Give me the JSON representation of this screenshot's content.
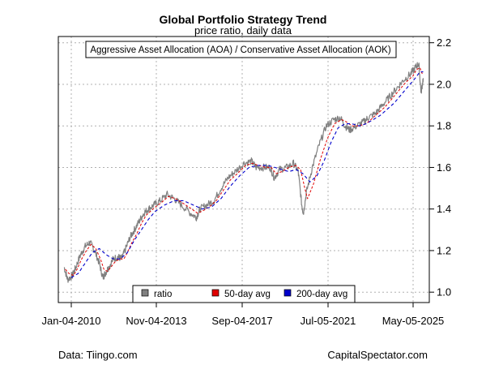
{
  "chart_data": {
    "type": "line",
    "title": "Global Portfolio Strategy Trend",
    "subtitle": "price ratio, daily data",
    "annotation": "Aggressive Asset Allocation (AOA) / Conservative Asset Allocation (AOK)",
    "x_ticks": [
      "Jan-04-2010",
      "Nov-04-2013",
      "Sep-04-2017",
      "Jul-05-2021",
      "May-05-2025"
    ],
    "y_ticks": [
      "1.0",
      "1.2",
      "1.4",
      "1.6",
      "1.8",
      "2.0",
      "2.2"
    ],
    "ylim": [
      0.95,
      2.23
    ],
    "xlim": [
      2009.75,
      2025.6
    ],
    "y_axis_position": "right",
    "grid": true,
    "legend_position": "bottom-center",
    "series": [
      {
        "name": "ratio",
        "color": "#808080",
        "x": [
          2010.0,
          2010.15,
          2010.35,
          2010.5,
          2010.7,
          2010.9,
          2011.1,
          2011.3,
          2011.5,
          2011.65,
          2011.75,
          2011.9,
          2012.1,
          2012.3,
          2012.45,
          2012.6,
          2012.8,
          2013.0,
          2013.2,
          2013.4,
          2013.6,
          2013.84,
          2014.1,
          2014.4,
          2014.7,
          2015.0,
          2015.4,
          2015.65,
          2015.8,
          2016.1,
          2016.4,
          2016.7,
          2017.0,
          2017.3,
          2017.68,
          2018.0,
          2018.2,
          2018.5,
          2018.8,
          2018.98,
          2019.2,
          2019.5,
          2019.8,
          2020.0,
          2020.15,
          2020.22,
          2020.35,
          2020.6,
          2020.9,
          2021.2,
          2021.51,
          2021.8,
          2022.0,
          2022.2,
          2022.5,
          2022.8,
          2023.0,
          2023.3,
          2023.6,
          2023.9,
          2024.2,
          2024.5,
          2024.8,
          2025.0,
          2025.15,
          2025.25,
          2025.34
        ],
        "values": [
          1.12,
          1.06,
          1.08,
          1.12,
          1.18,
          1.22,
          1.24,
          1.2,
          1.14,
          1.07,
          1.09,
          1.12,
          1.16,
          1.17,
          1.16,
          1.2,
          1.26,
          1.3,
          1.34,
          1.38,
          1.4,
          1.42,
          1.44,
          1.47,
          1.45,
          1.42,
          1.38,
          1.36,
          1.4,
          1.42,
          1.44,
          1.5,
          1.55,
          1.58,
          1.62,
          1.63,
          1.6,
          1.6,
          1.6,
          1.55,
          1.59,
          1.6,
          1.62,
          1.58,
          1.42,
          1.38,
          1.48,
          1.6,
          1.71,
          1.8,
          1.83,
          1.84,
          1.8,
          1.78,
          1.8,
          1.82,
          1.84,
          1.86,
          1.9,
          1.94,
          1.98,
          2.02,
          2.05,
          2.08,
          2.1,
          1.96,
          2.03
        ]
      },
      {
        "name": "50-day avg",
        "color": "#e00000",
        "x": [
          2010.05,
          2010.2,
          2010.4,
          2010.55,
          2010.75,
          2010.95,
          2011.15,
          2011.35,
          2011.55,
          2011.7,
          2011.85,
          2012.0,
          2012.2,
          2012.4,
          2012.55,
          2012.7,
          2012.9,
          2013.1,
          2013.3,
          2013.5,
          2013.7,
          2013.9,
          2014.15,
          2014.45,
          2014.75,
          2015.05,
          2015.45,
          2015.7,
          2015.9,
          2016.2,
          2016.5,
          2016.8,
          2017.1,
          2017.4,
          2017.75,
          2018.05,
          2018.3,
          2018.6,
          2018.85,
          2019.05,
          2019.3,
          2019.6,
          2019.9,
          2020.1,
          2020.28,
          2020.4,
          2020.65,
          2020.95,
          2021.25,
          2021.55,
          2021.85,
          2022.05,
          2022.3,
          2022.6,
          2022.9,
          2023.1,
          2023.4,
          2023.7,
          2024.0,
          2024.3,
          2024.6,
          2024.9,
          2025.05,
          2025.2,
          2025.3
        ],
        "values": [
          1.11,
          1.09,
          1.08,
          1.11,
          1.16,
          1.2,
          1.23,
          1.21,
          1.16,
          1.11,
          1.1,
          1.12,
          1.15,
          1.16,
          1.16,
          1.19,
          1.24,
          1.28,
          1.33,
          1.37,
          1.39,
          1.41,
          1.43,
          1.46,
          1.45,
          1.43,
          1.4,
          1.38,
          1.39,
          1.41,
          1.44,
          1.49,
          1.54,
          1.57,
          1.61,
          1.62,
          1.61,
          1.6,
          1.6,
          1.57,
          1.58,
          1.6,
          1.61,
          1.59,
          1.5,
          1.45,
          1.52,
          1.64,
          1.74,
          1.81,
          1.83,
          1.82,
          1.8,
          1.8,
          1.81,
          1.83,
          1.86,
          1.89,
          1.93,
          1.97,
          2.01,
          2.04,
          2.07,
          2.08,
          2.05
        ]
      },
      {
        "name": "200-day avg",
        "color": "#0000cc",
        "x": [
          2010.3,
          2010.6,
          2010.9,
          2011.2,
          2011.5,
          2011.8,
          2012.1,
          2012.4,
          2012.7,
          2013.0,
          2013.3,
          2013.6,
          2013.9,
          2014.3,
          2014.7,
          2015.1,
          2015.5,
          2015.9,
          2016.3,
          2016.7,
          2017.1,
          2017.5,
          2017.9,
          2018.3,
          2018.7,
          2019.0,
          2019.3,
          2019.6,
          2019.9,
          2020.2,
          2020.5,
          2020.8,
          2021.1,
          2021.4,
          2021.7,
          2022.0,
          2022.3,
          2022.6,
          2022.9,
          2023.2,
          2023.5,
          2023.8,
          2024.1,
          2024.4,
          2024.7,
          2025.0,
          2025.2,
          2025.34
        ],
        "values": [
          1.07,
          1.09,
          1.14,
          1.19,
          1.21,
          1.18,
          1.16,
          1.16,
          1.19,
          1.25,
          1.3,
          1.35,
          1.39,
          1.42,
          1.44,
          1.44,
          1.42,
          1.4,
          1.41,
          1.45,
          1.51,
          1.56,
          1.6,
          1.61,
          1.61,
          1.6,
          1.59,
          1.58,
          1.59,
          1.57,
          1.53,
          1.56,
          1.63,
          1.72,
          1.79,
          1.81,
          1.81,
          1.8,
          1.81,
          1.83,
          1.85,
          1.88,
          1.91,
          1.95,
          1.99,
          2.03,
          2.06,
          2.06
        ]
      }
    ]
  },
  "footer": {
    "left": "Data: Tiingo.com",
    "right": "CapitalSpectator.com"
  }
}
